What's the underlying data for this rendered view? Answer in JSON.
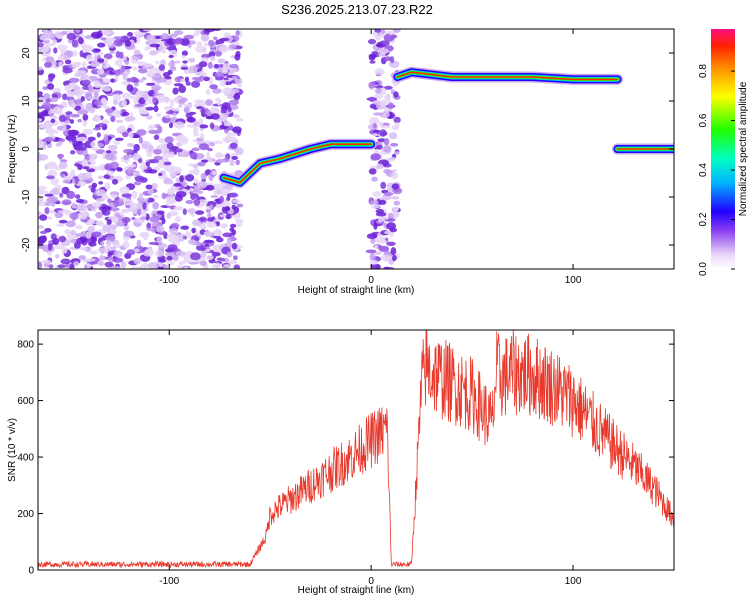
{
  "title": "S236.2025.213.07.23.R22",
  "spectrogram": {
    "type": "heatmap",
    "xlabel": "Height of straight line (km)",
    "ylabel": "Frequency (Hz)",
    "xlim": [
      -165,
      150
    ],
    "ylim": [
      -25,
      25
    ],
    "xticks": [
      -100,
      0,
      100
    ],
    "yticks": [
      -20,
      -10,
      0,
      10,
      20
    ],
    "noise_region": {
      "x": [
        -165,
        -65
      ],
      "y": [
        -25,
        25
      ]
    },
    "noise_column": {
      "x": [
        0,
        13
      ],
      "y": [
        -25,
        25
      ]
    },
    "ridge": [
      [
        -73,
        -6
      ],
      [
        -65,
        -7
      ],
      [
        -55,
        -3
      ],
      [
        -45,
        -2
      ],
      [
        -30,
        0
      ],
      [
        -20,
        1
      ],
      [
        0,
        1
      ],
      [
        13,
        15
      ],
      [
        20,
        16
      ],
      [
        40,
        15
      ],
      [
        60,
        15
      ],
      [
        80,
        15
      ],
      [
        100,
        14.5
      ],
      [
        122,
        14.5
      ],
      [
        122,
        0
      ],
      [
        135,
        0
      ],
      [
        150,
        0
      ]
    ],
    "ridge_segments": [
      [
        0,
        6
      ],
      [
        7,
        13
      ],
      [
        14,
        16
      ]
    ]
  },
  "colorbar": {
    "label": "Normalized spectral amplitude",
    "ticks": [
      0.0,
      0.2,
      0.4,
      0.6,
      0.8
    ],
    "tick_labels": [
      "0.0",
      "0.2",
      "0.4",
      "0.6",
      "0.8"
    ],
    "range": [
      0,
      0.97
    ]
  },
  "chart_data": {
    "type": "line",
    "xlabel": "Height of straight line (km)",
    "ylabel": "SNR (10 * v/v)",
    "xlim": [
      -165,
      150
    ],
    "ylim": [
      0,
      850
    ],
    "xticks": [
      -100,
      0,
      100
    ],
    "yticks": [
      0,
      200,
      400,
      600,
      800
    ],
    "color": "#e8392c",
    "series": [
      {
        "x": [
          -165,
          -100,
          -60,
          -52,
          -50,
          -40,
          -30,
          -20,
          -10,
          0,
          8,
          10,
          20,
          25,
          27,
          30,
          40,
          50,
          60,
          62,
          65,
          70,
          80,
          90,
          100,
          110,
          120,
          130,
          140,
          150
        ],
        "y": [
          20,
          20,
          20,
          120,
          200,
          250,
          300,
          350,
          400,
          460,
          500,
          20,
          20,
          650,
          720,
          700,
          660,
          620,
          520,
          700,
          680,
          700,
          690,
          650,
          600,
          520,
          440,
          370,
          290,
          180
        ]
      }
    ]
  }
}
